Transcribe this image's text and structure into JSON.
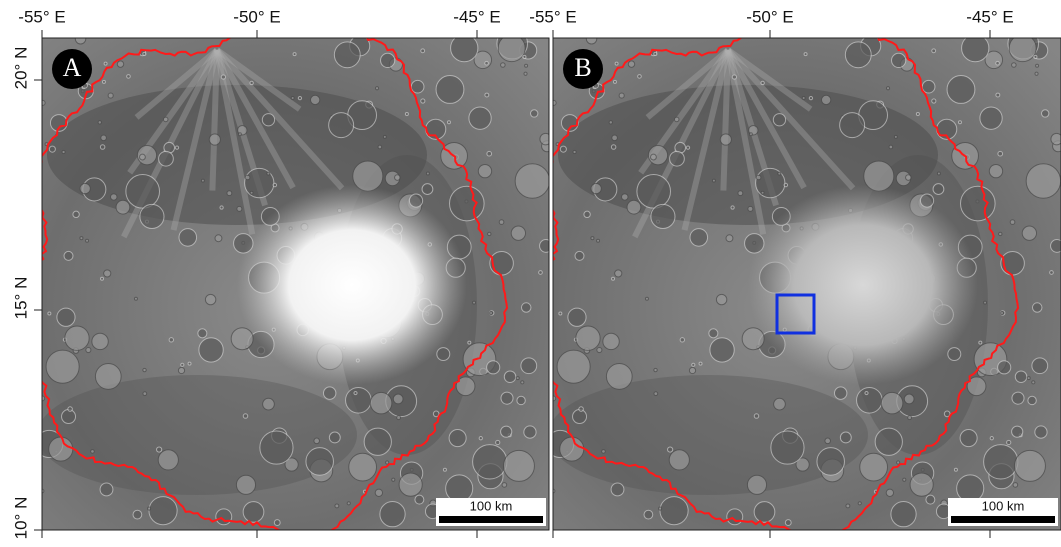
{
  "panels": [
    {
      "label": "A",
      "x_ticks": [
        "-55° E",
        "-50° E",
        "-45° E"
      ],
      "scale_bar": "100 km"
    },
    {
      "label": "B",
      "x_ticks": [
        "-55° E",
        "-50° E",
        "-45° E"
      ],
      "scale_bar": "100 km"
    }
  ],
  "y_ticks": [
    "20° N",
    "15° N",
    "10° N"
  ]
}
